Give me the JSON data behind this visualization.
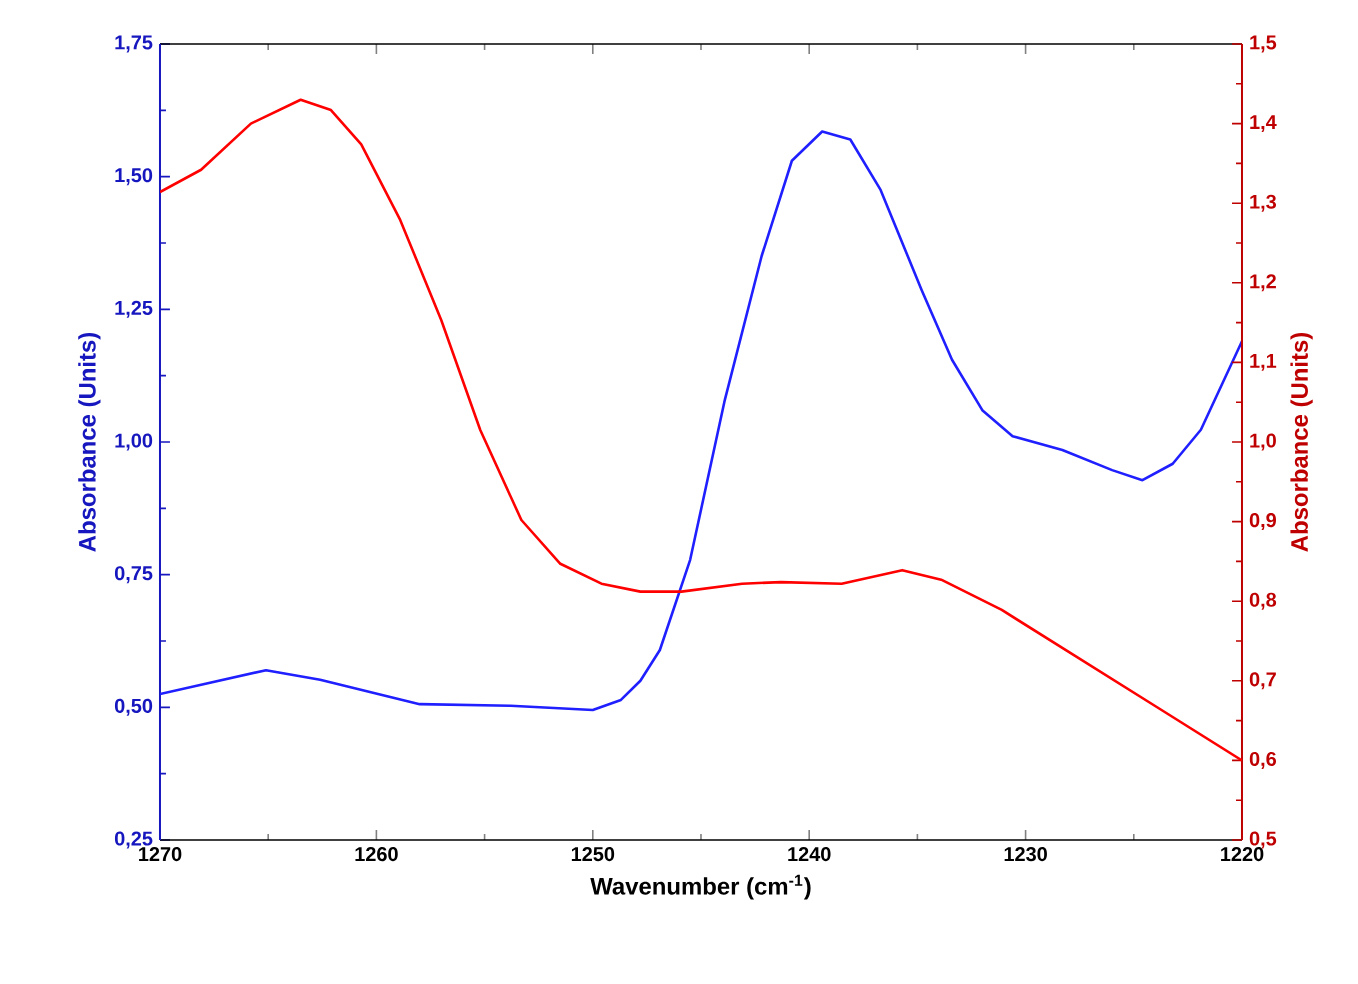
{
  "chart_data": {
    "type": "line",
    "xlabel": "Wavenumber (cm$^{-1}$)",
    "ylabel": "Absorbance (Units)",
    "y2label": "Absorbance (Units)",
    "xlim": [
      1270,
      1220
    ],
    "xticks": [
      1270,
      1260,
      1250,
      1240,
      1230,
      1220
    ],
    "ylim": [
      0.25,
      1.75
    ],
    "yticks": [
      {
        "value": 0.25,
        "label": "0,25"
      },
      {
        "value": 0.5,
        "label": "0,50"
      },
      {
        "value": 0.75,
        "label": "0,75"
      },
      {
        "value": 1.0,
        "label": "1,00"
      },
      {
        "value": 1.25,
        "label": "1,25"
      },
      {
        "value": 1.5,
        "label": "1,50"
      },
      {
        "value": 1.75,
        "label": "1,75"
      }
    ],
    "y2lim": [
      0.5,
      1.5
    ],
    "y2ticks": [
      {
        "value": 0.5,
        "label": "0,5"
      },
      {
        "value": 0.6,
        "label": "0,6"
      },
      {
        "value": 0.7,
        "label": "0,7"
      },
      {
        "value": 0.8,
        "label": "0,8"
      },
      {
        "value": 0.9,
        "label": "0,9"
      },
      {
        "value": 1.0,
        "label": "1,0"
      },
      {
        "value": 1.1,
        "label": "1,1"
      },
      {
        "value": 1.2,
        "label": "1,2"
      },
      {
        "value": 1.3,
        "label": "1,3"
      },
      {
        "value": 1.4,
        "label": "1,4"
      },
      {
        "value": 1.5,
        "label": "1,5"
      }
    ],
    "grid": false,
    "marker": "none",
    "line_style": "solid",
    "series": [
      {
        "color": "#1f1fff",
        "x": [
          1270,
          1265.1,
          1262.6,
          1258,
          1253.8,
          1250,
          1248.7,
          1247.8,
          1246.9,
          1245.5,
          1243.9,
          1242.2,
          1240.8,
          1239.4,
          1238.1,
          1236.7,
          1234.8,
          1233.4,
          1232,
          1230.6,
          1228.3,
          1226,
          1224.6,
          1223.2,
          1221.9,
          1220
        ],
        "values": [
          0.525,
          0.57,
          0.552,
          0.506,
          0.503,
          0.495,
          0.514,
          0.55,
          0.608,
          0.778,
          1.079,
          1.35,
          1.53,
          1.585,
          1.57,
          1.475,
          1.286,
          1.155,
          1.06,
          1.011,
          0.985,
          0.947,
          0.928,
          0.959,
          1.023,
          1.19
        ]
      },
      {
        "color": "#ff0000",
        "axis": "y2",
        "x": [
          1270,
          1268.1,
          1265.8,
          1263.5,
          1262.1,
          1260.7,
          1258.9,
          1257,
          1255.2,
          1253.3,
          1251.5,
          1249.6,
          1247.8,
          1245.9,
          1243.1,
          1241.3,
          1238.5,
          1235.7,
          1233.9,
          1231.1,
          1227.4,
          1223.7,
          1220
        ],
        "values": [
          1.314,
          1.342,
          1.4,
          1.43,
          1.417,
          1.374,
          1.279,
          1.153,
          1.015,
          0.902,
          0.847,
          0.822,
          0.812,
          0.812,
          0.822,
          0.824,
          0.822,
          0.839,
          0.827,
          0.789,
          0.726,
          0.663,
          0.6
        ]
      }
    ]
  }
}
